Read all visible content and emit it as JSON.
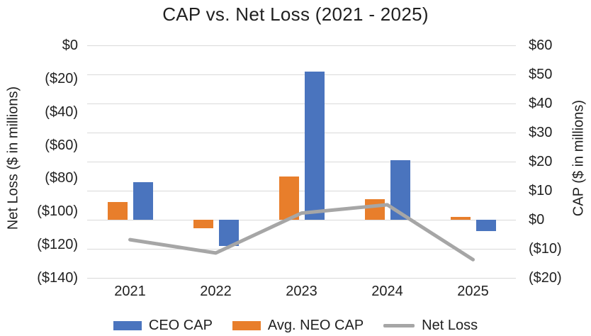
{
  "title": "CAP vs. Net Loss (2021 - 2025)",
  "left_axis": {
    "title": "Net Loss ($ in millions)",
    "ticks": [
      "$0",
      "($20)",
      "($40)",
      "($60)",
      "($80)",
      "($100)",
      "($120)",
      "($140)"
    ]
  },
  "right_axis": {
    "title": "CAP ($ in millions)",
    "ticks": [
      "$60",
      "$50",
      "$40",
      "$30",
      "$20",
      "$10",
      "$0",
      "($10)",
      "($20)"
    ]
  },
  "chart_data": {
    "type": "combo",
    "title": "CAP vs. Net Loss (2021 - 2025)",
    "categories": [
      "2021",
      "2022",
      "2023",
      "2024",
      "2025"
    ],
    "series": [
      {
        "name": "CEO CAP",
        "type": "bar",
        "axis": "right",
        "group_position": 1,
        "color": "#4A74BE",
        "values": [
          13,
          -9,
          51,
          20.5,
          -4
        ]
      },
      {
        "name": "Avg. NEO CAP",
        "type": "bar",
        "axis": "right",
        "group_position": 0,
        "color": "#E87E2B",
        "values": [
          6,
          -3,
          15,
          7,
          1
        ]
      },
      {
        "name": "Net Loss",
        "type": "line",
        "axis": "left",
        "color": "#A6A6A6",
        "values": [
          -117,
          -125,
          -101,
          -96,
          -129
        ]
      }
    ],
    "left_ylabel": "Net Loss ($ in millions)",
    "right_ylabel": "CAP ($ in millions)",
    "left_ylim": [
      -140,
      0
    ],
    "right_ylim": [
      -20,
      60
    ],
    "grid": true,
    "grid_color": "#D9D9D9",
    "legend_position": "bottom"
  }
}
